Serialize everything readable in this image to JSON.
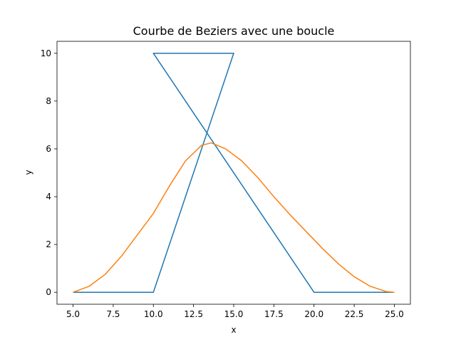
{
  "chart_data": {
    "type": "line",
    "title": "Courbe de Beziers avec une boucle",
    "xlabel": "x",
    "ylabel": "y",
    "xlim": [
      4.0,
      26.0
    ],
    "ylim": [
      -0.5,
      10.5
    ],
    "grid": false,
    "xticks": [
      5.0,
      7.5,
      10.0,
      12.5,
      15.0,
      17.5,
      20.0,
      22.5,
      25.0
    ],
    "xtick_labels": [
      "5.0",
      "7.5",
      "10.0",
      "12.5",
      "15.0",
      "17.5",
      "20.0",
      "22.5",
      "25.0"
    ],
    "yticks": [
      0,
      2,
      4,
      6,
      8,
      10
    ],
    "ytick_labels": [
      "0",
      "2",
      "4",
      "6",
      "8",
      "10"
    ],
    "series": [
      {
        "color": "#1f77b4",
        "x": [
          5,
          10,
          15,
          10,
          20,
          25
        ],
        "y": [
          0,
          0,
          10,
          10,
          0,
          0
        ]
      },
      {
        "color": "#ff7f0e",
        "x": [
          5.0,
          6.0,
          7.0,
          8.0,
          9.0,
          10.0,
          11.0,
          12.0,
          13.0,
          13.6,
          14.5,
          15.5,
          16.5,
          17.5,
          18.5,
          19.5,
          20.5,
          21.5,
          22.5,
          23.5,
          24.5,
          25.0
        ],
        "y": [
          0.0,
          0.25,
          0.75,
          1.5,
          2.4,
          3.3,
          4.45,
          5.5,
          6.15,
          6.25,
          6.0,
          5.5,
          4.8,
          4.0,
          3.25,
          2.55,
          1.85,
          1.2,
          0.65,
          0.25,
          0.03,
          0.0
        ]
      }
    ]
  }
}
